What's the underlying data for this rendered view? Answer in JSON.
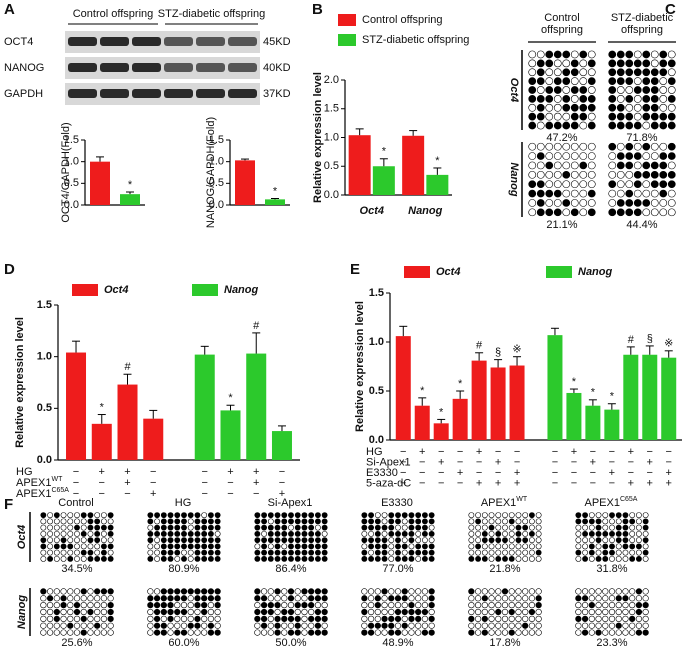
{
  "panels": [
    "A",
    "B",
    "C",
    "D",
    "E",
    "F"
  ],
  "blot": {
    "groups": [
      "Control offspring",
      "STZ-diabetic offspring"
    ],
    "rows": [
      {
        "name": "OCT4",
        "size": "45KD"
      },
      {
        "name": "NANOG",
        "size": "40KD"
      },
      {
        "name": "GAPDH",
        "size": "37KD"
      }
    ]
  },
  "chart_data": [
    {
      "type": "bar",
      "ylabel": "OCT4/GAPDH(Fold)",
      "values": [
        1.0,
        0.25
      ],
      "errors": [
        0.11,
        0.05
      ],
      "annotations": [
        null,
        "*"
      ],
      "colors": [
        "#ee1c1c",
        "#2cc92c"
      ],
      "ylim": [
        0,
        1.5
      ],
      "yticks": [
        {
          "value": 0,
          "label": "0.0"
        },
        {
          "value": 0.5,
          "label": "0.5"
        },
        {
          "value": 1.0,
          "label": "1.0"
        },
        {
          "value": 1.5,
          "label": "1.5"
        }
      ]
    },
    {
      "type": "bar",
      "ylabel": "NANOG/GAPDH(Fold)",
      "values": [
        1.03,
        0.13
      ],
      "errors": [
        0.03,
        0.02
      ],
      "annotations": [
        null,
        "*"
      ],
      "colors": [
        "#ee1c1c",
        "#2cc92c"
      ],
      "ylim": [
        0,
        1.5
      ],
      "yticks": [
        {
          "value": 0,
          "label": "0.0"
        },
        {
          "value": 0.5,
          "label": "0.5"
        },
        {
          "value": 1.0,
          "label": "1.0"
        },
        {
          "value": 1.5,
          "label": "1.5"
        }
      ]
    },
    {
      "type": "bar",
      "ylabel": "Relative expression level",
      "categories": [
        "Oct4",
        "Nanog"
      ],
      "series": [
        {
          "name": "Control offspring",
          "color": "#ee1c1c",
          "values": [
            1.04,
            1.03
          ],
          "errors": [
            0.11,
            0.09
          ],
          "annotations": [
            null,
            null
          ]
        },
        {
          "name": "STZ-diabetic offspring",
          "color": "#2cc92c",
          "values": [
            0.5,
            0.35
          ],
          "errors": [
            0.13,
            0.12
          ],
          "annotations": [
            "*",
            "*"
          ]
        }
      ],
      "ylim": [
        0,
        2.0
      ],
      "yticks": [
        {
          "value": 0,
          "label": "0.0"
        },
        {
          "value": 0.5,
          "label": "0.5"
        },
        {
          "value": 1.0,
          "label": "1.0"
        },
        {
          "value": 1.5,
          "label": "1.5"
        },
        {
          "value": 2.0,
          "label": "2.0"
        }
      ]
    },
    {
      "type": "bar",
      "ylabel": "Relative expression level",
      "series": [
        {
          "name": "Oct4",
          "color": "#ee1c1c",
          "values": [
            1.04,
            0.35,
            0.73,
            0.4
          ],
          "errors": [
            0.11,
            0.09,
            0.1,
            0.08
          ],
          "annotations": [
            null,
            "*",
            "#",
            null
          ]
        },
        {
          "name": "Nanog",
          "color": "#2cc92c",
          "values": [
            1.02,
            0.48,
            1.03,
            0.28
          ],
          "errors": [
            0.08,
            0.05,
            0.2,
            0.05
          ],
          "annotations": [
            null,
            "*",
            "#",
            null
          ]
        }
      ],
      "treatments": [
        {
          "name": "HG",
          "signs": [
            "−",
            "+",
            "+",
            "−",
            "−",
            "+",
            "+",
            "−"
          ]
        },
        {
          "name": {
            "base": "APEX1",
            "sup": "WT"
          },
          "signs": [
            "−",
            "−",
            "+",
            "−",
            "−",
            "−",
            "+",
            "−"
          ]
        },
        {
          "name": {
            "base": "APEX1",
            "sup": "C65A"
          },
          "signs": [
            "−",
            "−",
            "−",
            "+",
            "−",
            "−",
            "−",
            "+"
          ]
        }
      ],
      "ylim": [
        0,
        1.5
      ],
      "yticks": [
        {
          "value": 0,
          "label": "0.0"
        },
        {
          "value": 0.5,
          "label": "0.5"
        },
        {
          "value": 1.0,
          "label": "1.0"
        },
        {
          "value": 1.5,
          "label": "1.5"
        }
      ]
    },
    {
      "type": "bar",
      "ylabel": "Relative expression level",
      "series": [
        {
          "name": "Oct4",
          "color": "#ee1c1c",
          "values": [
            1.06,
            0.35,
            0.17,
            0.42,
            0.81,
            0.74,
            0.76
          ],
          "errors": [
            0.1,
            0.08,
            0.04,
            0.08,
            0.08,
            0.08,
            0.09
          ],
          "annotations": [
            null,
            "*",
            "*",
            "*",
            "#",
            "§",
            "※"
          ]
        },
        {
          "name": "Nanog",
          "color": "#2cc92c",
          "values": [
            1.07,
            0.48,
            0.35,
            0.31,
            0.87,
            0.87,
            0.84
          ],
          "errors": [
            0.07,
            0.04,
            0.06,
            0.06,
            0.08,
            0.09,
            0.07
          ],
          "annotations": [
            null,
            "*",
            "*",
            "*",
            "#",
            "§",
            "※"
          ]
        }
      ],
      "treatments": [
        {
          "name": "HG",
          "signs": [
            "−",
            "+",
            "−",
            "−",
            "+",
            "−",
            "−",
            "−",
            "+",
            "−",
            "−",
            "+",
            "−",
            "−"
          ]
        },
        {
          "name": "Si-Apex1",
          "signs": [
            "−",
            "−",
            "+",
            "−",
            "−",
            "+",
            "−",
            "−",
            "−",
            "+",
            "−",
            "−",
            "+",
            "−"
          ]
        },
        {
          "name": "E3330",
          "signs": [
            "−",
            "−",
            "−",
            "+",
            "−",
            "−",
            "+",
            "−",
            "−",
            "−",
            "+",
            "−",
            "−",
            "+"
          ]
        },
        {
          "name": "5-aza-dC",
          "signs": [
            "−",
            "−",
            "−",
            "−",
            "+",
            "+",
            "+",
            "−",
            "−",
            "−",
            "−",
            "+",
            "+",
            "+"
          ]
        }
      ],
      "ylim": [
        0,
        1.5
      ],
      "yticks": [
        {
          "value": 0,
          "label": "0.0"
        },
        {
          "value": 0.5,
          "label": "0.5"
        },
        {
          "value": 1.0,
          "label": "1.0"
        },
        {
          "value": 1.5,
          "label": "1.5"
        }
      ]
    }
  ],
  "methylation_c": {
    "genes": [
      "Oct4",
      "Nanog"
    ],
    "groups": [
      {
        "name": [
          "Control",
          "offspring"
        ],
        "pct": [
          "47.2%",
          "21.1%"
        ]
      },
      {
        "name": [
          "STZ-diabetic",
          "offspring"
        ],
        "pct": [
          "71.8%",
          "44.4%"
        ]
      }
    ]
  },
  "methylation_f": {
    "genes": [
      "Oct4",
      "Nanog"
    ],
    "groups": [
      {
        "name": "Control",
        "pct": [
          "34.5%",
          "25.6%"
        ]
      },
      {
        "name": "HG",
        "pct": [
          "80.9%",
          "60.0%"
        ]
      },
      {
        "name": "Si-Apex1",
        "pct": [
          "86.4%",
          "50.0%"
        ]
      },
      {
        "name": "E3330",
        "pct": [
          "77.0%",
          "48.9%"
        ]
      },
      {
        "name": {
          "base": "APEX1",
          "sup": "WT"
        },
        "pct": [
          "21.8%",
          "17.8%"
        ]
      },
      {
        "name": {
          "base": "APEX1",
          "sup": "C65A"
        },
        "pct": [
          "31.8%",
          "23.3%"
        ]
      }
    ]
  }
}
